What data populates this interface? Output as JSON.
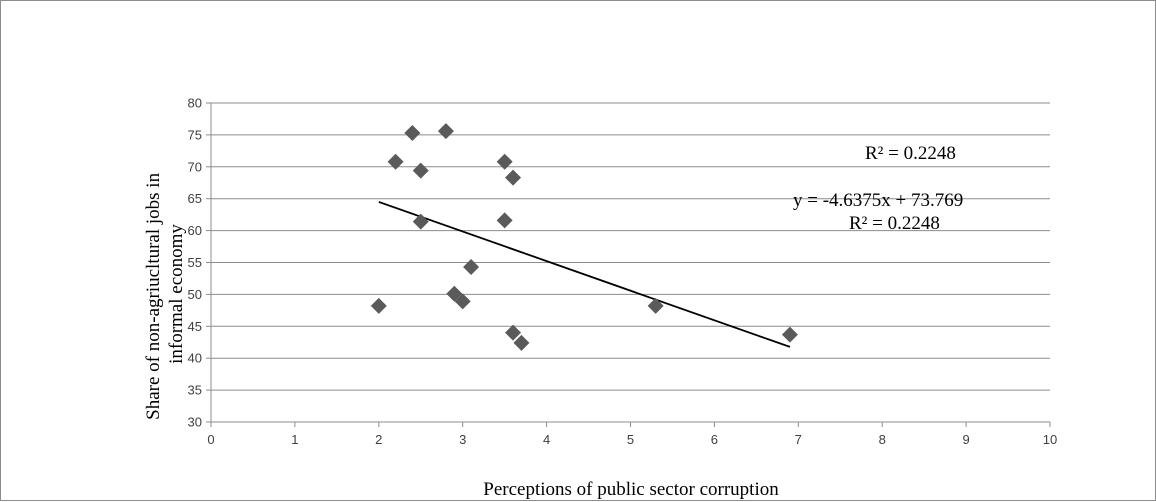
{
  "chart_data": {
    "type": "scatter",
    "xlabel": "Perceptions of public sector corruption",
    "ylabel_lines": [
      "Share of non-agriucltural jobs in",
      "informal economy"
    ],
    "xlim": [
      0,
      10
    ],
    "ylim": [
      30,
      80
    ],
    "xticks": [
      0,
      1,
      2,
      3,
      4,
      5,
      6,
      7,
      8,
      9,
      10
    ],
    "yticks": [
      30,
      35,
      40,
      45,
      50,
      55,
      60,
      65,
      70,
      75,
      80
    ],
    "grid": "horizontal",
    "marker": "diamond",
    "colors": {
      "points": "#5a5a5a",
      "trendline": "#000000",
      "grid": "#8c8c8c",
      "axis": "#8c8c8c"
    },
    "points": [
      {
        "x": 2.0,
        "y": 48.2
      },
      {
        "x": 2.2,
        "y": 70.8
      },
      {
        "x": 2.4,
        "y": 75.3
      },
      {
        "x": 2.5,
        "y": 69.4
      },
      {
        "x": 2.5,
        "y": 61.4
      },
      {
        "x": 2.8,
        "y": 75.6
      },
      {
        "x": 2.9,
        "y": 50.1
      },
      {
        "x": 3.0,
        "y": 48.9
      },
      {
        "x": 3.1,
        "y": 54.3
      },
      {
        "x": 3.5,
        "y": 70.8
      },
      {
        "x": 3.5,
        "y": 61.6
      },
      {
        "x": 3.6,
        "y": 68.3
      },
      {
        "x": 3.6,
        "y": 44.0
      },
      {
        "x": 3.7,
        "y": 42.4
      },
      {
        "x": 5.3,
        "y": 48.2
      },
      {
        "x": 6.9,
        "y": 43.7
      }
    ],
    "trendline": {
      "slope": -4.6375,
      "intercept": 73.769,
      "x_start": 2.0,
      "x_end": 6.9
    },
    "annotations": {
      "r2_top": "R² = 0.2248",
      "equation": "y = -4.6375x + 73.769",
      "r2_bottom": "R² = 0.2248"
    }
  }
}
